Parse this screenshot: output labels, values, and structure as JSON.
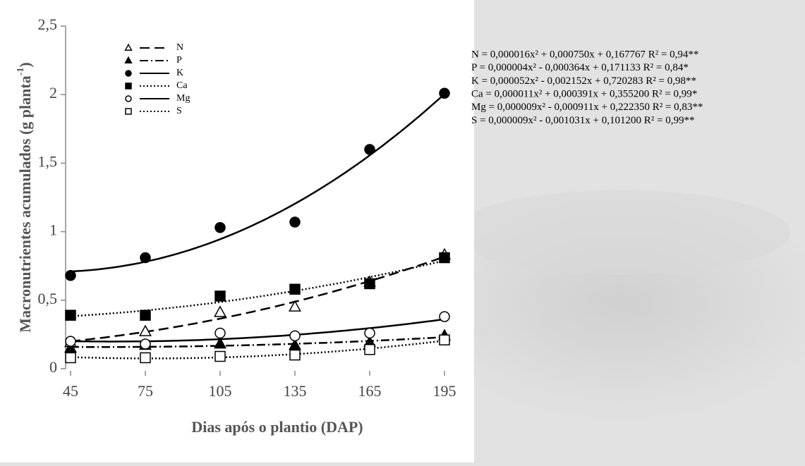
{
  "chart_data": {
    "type": "scatter",
    "trendline": "quadratic",
    "y_label": "Macronutrientes acumulados (g planta",
    "y_label_sup": "-1",
    "y_label_end": ")",
    "x_label": "Dias após o plantio (DAP)",
    "x": [
      45,
      75,
      105,
      135,
      165,
      195
    ],
    "xlim": [
      45,
      195
    ],
    "xticks": [
      45,
      75,
      105,
      135,
      165,
      195
    ],
    "ylim": [
      0,
      2.5
    ],
    "yticks": [
      0,
      {
        "value": 0.5,
        "label": "0,5"
      },
      1,
      {
        "value": 1.5,
        "label": "1,5"
      },
      2,
      {
        "value": 2.5,
        "label": "2,5"
      }
    ],
    "series": [
      {
        "name": "N",
        "color": "#000",
        "marker": "triangle-open",
        "dash": "14 7",
        "values": [
          0.19,
          0.27,
          0.41,
          0.45,
          0.63,
          0.83
        ]
      },
      {
        "name": "P",
        "color": "#000",
        "marker": "triangle",
        "dash": "12 4 2 4",
        "values": [
          0.15,
          0.17,
          0.18,
          0.17,
          0.19,
          0.24
        ]
      },
      {
        "name": "K",
        "color": "#000",
        "marker": "circle",
        "dash": "none",
        "values": [
          0.68,
          0.81,
          1.03,
          1.07,
          1.6,
          2.01
        ]
      },
      {
        "name": "Ca",
        "color": "#000",
        "marker": "square",
        "dash": "2 3",
        "values": [
          0.39,
          0.39,
          0.53,
          0.58,
          0.62,
          0.81
        ]
      },
      {
        "name": "Mg",
        "color": "#000",
        "marker": "circle-open",
        "dash": "none",
        "values": [
          0.2,
          0.18,
          0.26,
          0.24,
          0.26,
          0.38
        ]
      },
      {
        "name": "S",
        "color": "#000",
        "marker": "square-open",
        "dash": "2 3",
        "values": [
          0.08,
          0.08,
          0.09,
          0.1,
          0.14,
          0.21
        ]
      }
    ],
    "equations": [
      "N = 0,000016x² + 0,000750x + 0,167767 R² = 0,94**",
      "P = 0,000004x² - 0,000364x + 0,171133 R² = 0,84*",
      "K = 0,000052x² - 0,002152x + 0,720283 R² = 0,98**",
      "Ca = 0,000011x² + 0,000391x + 0,355200 R² = 0,99*",
      "Mg = 0,000009x² - 0,000911x + 0,222350 R² = 0,83**",
      "S = 0,000009x² - 0,001031x + 0,101200 R² = 0,99**"
    ]
  }
}
